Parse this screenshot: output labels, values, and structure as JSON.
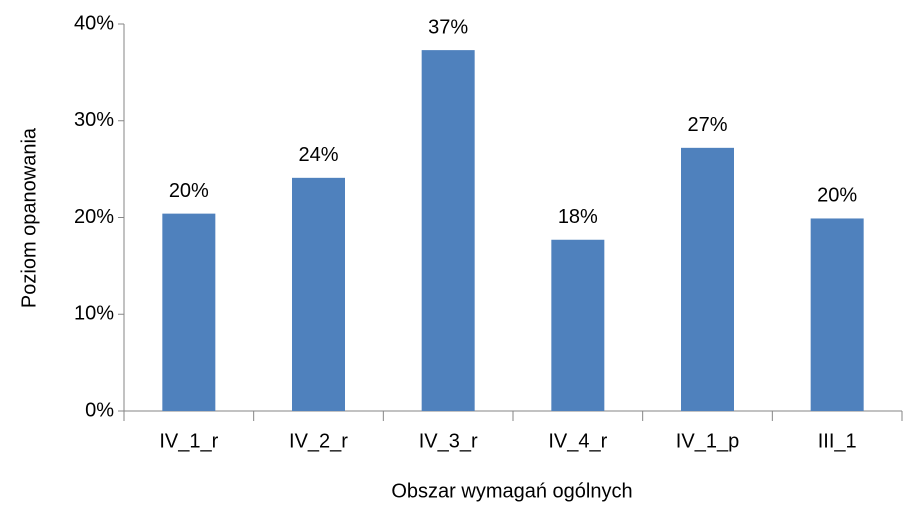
{
  "chart_data": {
    "type": "bar",
    "x_label": "Obszar wymagań ogólnych",
    "y_label": "Poziom opanowania",
    "categories": [
      "IV_1_r",
      "IV_2_r",
      "IV_3_r",
      "IV_4_r",
      "IV_1_p",
      "III_1"
    ],
    "values": [
      20.4,
      24.1,
      37.3,
      17.7,
      27.2,
      19.9
    ],
    "value_labels": [
      "20%",
      "24%",
      "37%",
      "18%",
      "27%",
      "20%"
    ],
    "color": "#4f81bd",
    "ylim": [
      0,
      40
    ],
    "yticks": [
      {
        "value": 0,
        "label": "0%"
      },
      {
        "value": 10,
        "label": "10%"
      },
      {
        "value": 20,
        "label": "20%"
      },
      {
        "value": 30,
        "label": "30%"
      },
      {
        "value": 40,
        "label": "40%"
      }
    ],
    "grid": false
  }
}
